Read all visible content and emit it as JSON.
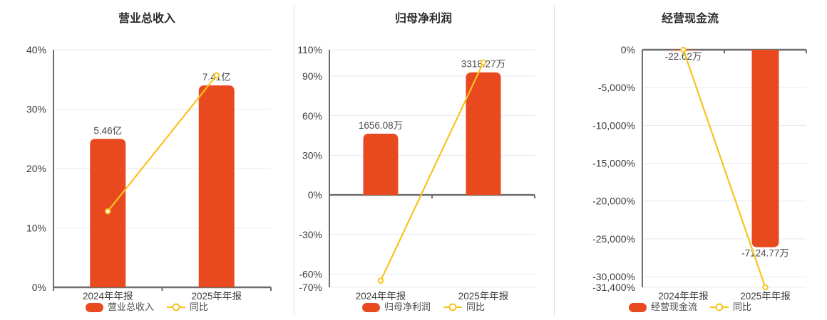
{
  "colors": {
    "bar": "#e8491e",
    "line": "#f8c31e",
    "grid": "#e5e9f2",
    "axis": "#6e6e6e",
    "tick_text": "#3d3d3d",
    "value_text": "#4a4a4a",
    "title_text": "#2d2d2d",
    "marker_fill": "#ffffff"
  },
  "legend_note": "each panel shows a bar series plus a year-over-year line series",
  "chart_data": [
    {
      "type": "bar",
      "title": "营业总收入",
      "categories": [
        "2024年年报",
        "2025年年报"
      ],
      "bar_series": {
        "name": "营业总收入",
        "labels": [
          "5.46亿",
          "7.41亿"
        ],
        "plot_values": [
          25,
          34
        ]
      },
      "line_series": {
        "name": "同比",
        "values": [
          12.8,
          35.7
        ]
      },
      "ylim": [
        0,
        40
      ],
      "yticks": [
        {
          "value": 40,
          "label": "40%"
        },
        {
          "value": 30,
          "label": "30%"
        },
        {
          "value": 20,
          "label": "20%"
        },
        {
          "value": 10,
          "label": "10%"
        },
        {
          "value": 0,
          "label": "0%",
          "zero": true
        }
      ],
      "grid": true,
      "legend_position": "bottom"
    },
    {
      "type": "bar",
      "title": "归母净利润",
      "categories": [
        "2024年年报",
        "2025年年报"
      ],
      "bar_series": {
        "name": "归母净利润",
        "labels": [
          "1656.08万",
          "3318.27万"
        ],
        "plot_values": [
          46.4,
          92.9
        ]
      },
      "line_series": {
        "name": "同比",
        "values": [
          -65,
          100.4
        ]
      },
      "ylim": [
        -70,
        110
      ],
      "yticks": [
        {
          "value": 110,
          "label": "110%"
        },
        {
          "value": 90,
          "label": "90%"
        },
        {
          "value": 60,
          "label": "60%"
        },
        {
          "value": 30,
          "label": "30%"
        },
        {
          "value": 0,
          "label": "0%",
          "zero": true
        },
        {
          "value": -30,
          "label": "-30%"
        },
        {
          "value": -60,
          "label": "-60%"
        },
        {
          "value": -70,
          "label": "-70%"
        }
      ],
      "grid": true,
      "legend_position": "bottom"
    },
    {
      "type": "bar",
      "title": "经营现金流",
      "categories": [
        "2024年年报",
        "2025年年报"
      ],
      "bar_series": {
        "name": "经营现金流",
        "labels": [
          "-22.62万",
          "-7124.77万"
        ],
        "plot_values": [
          -85,
          -26100
        ]
      },
      "line_series": {
        "name": "同比",
        "values": [
          0,
          -31400
        ]
      },
      "ylim": [
        -31400,
        0
      ],
      "yticks": [
        {
          "value": 0,
          "label": "0%",
          "zero": true
        },
        {
          "value": -5000,
          "label": "-5,000%"
        },
        {
          "value": -10000,
          "label": "-10,000%"
        },
        {
          "value": -15000,
          "label": "-15,000%"
        },
        {
          "value": -20000,
          "label": "-20,000%"
        },
        {
          "value": -25000,
          "label": "-25,000%"
        },
        {
          "value": -30000,
          "label": "-30,000%"
        },
        {
          "value": -31400,
          "label": "-31,400%"
        }
      ],
      "grid": true,
      "legend_position": "bottom"
    }
  ]
}
